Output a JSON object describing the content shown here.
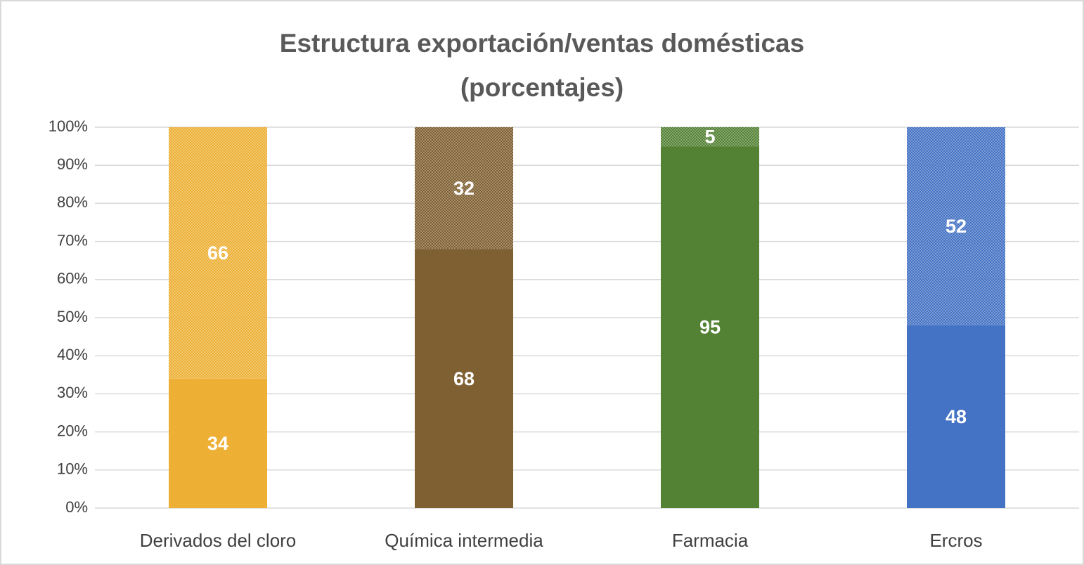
{
  "chart_data": {
    "type": "stacked_bar_percent",
    "title": [
      "Estructura exportación/ventas domésticas",
      "(porcentajes)"
    ],
    "categories": [
      "Derivados del cloro",
      "Química intermedia",
      "Farmacia",
      "Ercros"
    ],
    "colors": [
      "#edb035",
      "#7f6032",
      "#548235",
      "#4472c4"
    ],
    "series": [
      {
        "values": [
          34,
          68,
          95,
          48
        ],
        "pattern": "solid"
      },
      {
        "values": [
          66,
          32,
          5,
          52
        ],
        "pattern": "dotted"
      }
    ],
    "ylim": [
      0,
      100
    ],
    "yticks": [
      {
        "value": 0,
        "label": "0%"
      },
      {
        "value": 10,
        "label": "10%"
      },
      {
        "value": 20,
        "label": "20%"
      },
      {
        "value": 30,
        "label": "30%"
      },
      {
        "value": 40,
        "label": "40%"
      },
      {
        "value": 50,
        "label": "50%"
      },
      {
        "value": 60,
        "label": "60%"
      },
      {
        "value": 70,
        "label": "70%"
      },
      {
        "value": 80,
        "label": "80%"
      },
      {
        "value": 90,
        "label": "90%"
      },
      {
        "value": 100,
        "label": "100%"
      }
    ],
    "grid": true
  }
}
